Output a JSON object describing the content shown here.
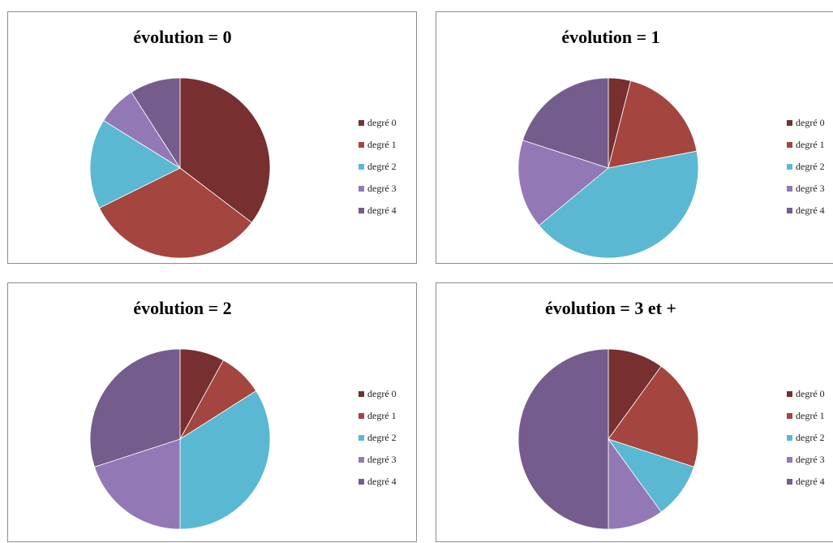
{
  "colors": [
    "#772f2f",
    "#a4453f",
    "#5ab8d2",
    "#9279b5",
    "#745d8d"
  ],
  "legend_labels": [
    "degré 0",
    "degré 1",
    "degré 2",
    "degré 3",
    "degré 4"
  ],
  "chart_data": [
    {
      "type": "pie",
      "title": "évolution = 0",
      "categories": [
        "degré 0",
        "degré 1",
        "degré 2",
        "degré 3",
        "degré 4"
      ],
      "values": [
        0.35,
        0.32,
        0.16,
        0.07,
        0.09
      ],
      "legend": "right"
    },
    {
      "type": "pie",
      "title": "évolution = 1",
      "categories": [
        "degré 0",
        "degré 1",
        "degré 2",
        "degré 3",
        "degré 4"
      ],
      "values": [
        0.04,
        0.18,
        0.42,
        0.16,
        0.2
      ],
      "legend": "right"
    },
    {
      "type": "pie",
      "title": "évolution = 2",
      "categories": [
        "degré 0",
        "degré 1",
        "degré 2",
        "degré 3",
        "degré 4"
      ],
      "values": [
        0.08,
        0.08,
        0.34,
        0.2,
        0.3
      ],
      "legend": "right"
    },
    {
      "type": "pie",
      "title": "évolution = 3 et +",
      "categories": [
        "degré 0",
        "degré 1",
        "degré 2",
        "degré 3",
        "degré 4"
      ],
      "values": [
        0.1,
        0.2,
        0.1,
        0.1,
        0.5
      ],
      "legend": "right"
    }
  ]
}
